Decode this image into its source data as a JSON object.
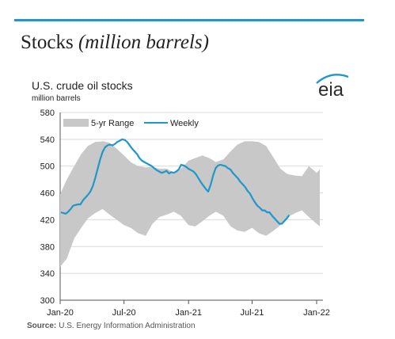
{
  "section": {
    "heading_main": "Stocks",
    "heading_italic": "(million barrels)",
    "accent_color": "#1f97c9"
  },
  "logo": {
    "text": "eia",
    "icon": "eia-logo-icon"
  },
  "source": {
    "label": "Source:",
    "text": "U.S. Energy Information Administration"
  },
  "chart_data": {
    "type": "line",
    "title": "U.S. crude oil stocks",
    "subtitle": "million  barrels",
    "ylim": [
      300,
      580
    ],
    "y_ticks": [
      300,
      340,
      380,
      420,
      460,
      500,
      540,
      580
    ],
    "x_ticks": [
      "Jan-20",
      "Jul-20",
      "Jan-21",
      "Jul-21",
      "Jan-22"
    ],
    "x_tick_dates": [
      "2020-01-01",
      "2020-07-01",
      "2021-01-01",
      "2021-07-01",
      "2022-01-01"
    ],
    "grid": true,
    "legend_position": "top",
    "range": {
      "name": "5-yr Range",
      "color": "#c8c8c8",
      "dates": [
        "2020-01-01",
        "2020-01-20",
        "2020-02-10",
        "2020-03-01",
        "2020-03-20",
        "2020-04-10",
        "2020-05-01",
        "2020-05-20",
        "2020-06-10",
        "2020-07-01",
        "2020-07-20",
        "2020-08-10",
        "2020-09-01",
        "2020-09-20",
        "2020-10-10",
        "2020-11-01",
        "2020-11-20",
        "2020-12-10",
        "2021-01-01",
        "2021-01-20",
        "2021-02-10",
        "2021-03-01",
        "2021-03-20",
        "2021-04-10",
        "2021-05-01",
        "2021-05-20",
        "2021-06-10",
        "2021-07-01",
        "2021-07-20",
        "2021-08-10",
        "2021-09-01",
        "2021-09-20",
        "2021-10-10",
        "2021-11-01",
        "2021-11-20",
        "2021-12-10",
        "2022-01-01",
        "2022-01-10"
      ],
      "high": [
        458,
        480,
        500,
        518,
        530,
        536,
        537,
        535,
        526,
        516,
        506,
        500,
        498,
        499,
        496,
        496,
        490,
        496,
        508,
        512,
        516,
        512,
        506,
        510,
        522,
        532,
        537,
        537,
        536,
        530,
        512,
        496,
        488,
        486,
        485,
        500,
        490,
        495
      ],
      "low": [
        350,
        362,
        392,
        408,
        422,
        430,
        436,
        428,
        420,
        412,
        408,
        400,
        396,
        414,
        424,
        428,
        432,
        426,
        412,
        410,
        418,
        426,
        432,
        426,
        410,
        404,
        402,
        408,
        400,
        396,
        404,
        412,
        424,
        430,
        434,
        424,
        414,
        410
      ]
    },
    "series": [
      {
        "name": "Weekly",
        "color": "#1f97c9",
        "dates": [
          "2020-01-03",
          "2020-01-10",
          "2020-01-17",
          "2020-01-24",
          "2020-01-31",
          "2020-02-07",
          "2020-02-14",
          "2020-02-21",
          "2020-02-28",
          "2020-03-06",
          "2020-03-13",
          "2020-03-20",
          "2020-03-27",
          "2020-04-03",
          "2020-04-10",
          "2020-04-17",
          "2020-04-24",
          "2020-05-01",
          "2020-05-08",
          "2020-05-15",
          "2020-05-22",
          "2020-05-29",
          "2020-06-05",
          "2020-06-12",
          "2020-06-19",
          "2020-06-26",
          "2020-07-03",
          "2020-07-10",
          "2020-07-17",
          "2020-07-24",
          "2020-07-31",
          "2020-08-07",
          "2020-08-14",
          "2020-08-21",
          "2020-08-28",
          "2020-09-04",
          "2020-09-11",
          "2020-09-18",
          "2020-09-25",
          "2020-10-02",
          "2020-10-09",
          "2020-10-16",
          "2020-10-23",
          "2020-10-30",
          "2020-11-06",
          "2020-11-13",
          "2020-11-20",
          "2020-11-27",
          "2020-12-04",
          "2020-12-11",
          "2020-12-18",
          "2020-12-25",
          "2021-01-01",
          "2021-01-08",
          "2021-01-15",
          "2021-01-22",
          "2021-01-29",
          "2021-02-05",
          "2021-02-12",
          "2021-02-19",
          "2021-02-26",
          "2021-03-05",
          "2021-03-12",
          "2021-03-19",
          "2021-03-26",
          "2021-04-02",
          "2021-04-09",
          "2021-04-16",
          "2021-04-23",
          "2021-04-30",
          "2021-05-07",
          "2021-05-14",
          "2021-05-21",
          "2021-05-28",
          "2021-06-04",
          "2021-06-11",
          "2021-06-18",
          "2021-06-25",
          "2021-07-02",
          "2021-07-09",
          "2021-07-16",
          "2021-07-23",
          "2021-07-30",
          "2021-08-06",
          "2021-08-13",
          "2021-08-20",
          "2021-08-27",
          "2021-09-03",
          "2021-09-10",
          "2021-09-17",
          "2021-09-24",
          "2021-10-01",
          "2021-10-08",
          "2021-10-15"
        ],
        "values": [
          431,
          430,
          429,
          432,
          436,
          441,
          442,
          443,
          443,
          449,
          453,
          457,
          462,
          470,
          482,
          496,
          510,
          521,
          528,
          531,
          532,
          531,
          533,
          536,
          538,
          540,
          539,
          536,
          531,
          526,
          522,
          518,
          512,
          508,
          506,
          504,
          502,
          500,
          497,
          494,
          492,
          490,
          491,
          493,
          489,
          491,
          490,
          492,
          495,
          502,
          501,
          499,
          496,
          494,
          492,
          488,
          482,
          476,
          471,
          466,
          462,
          472,
          486,
          497,
          501,
          502,
          501,
          500,
          497,
          495,
          490,
          486,
          482,
          477,
          473,
          469,
          463,
          459,
          452,
          446,
          441,
          438,
          434,
          434,
          431,
          431,
          426,
          422,
          418,
          414,
          414,
          418,
          422,
          427
        ]
      }
    ]
  }
}
